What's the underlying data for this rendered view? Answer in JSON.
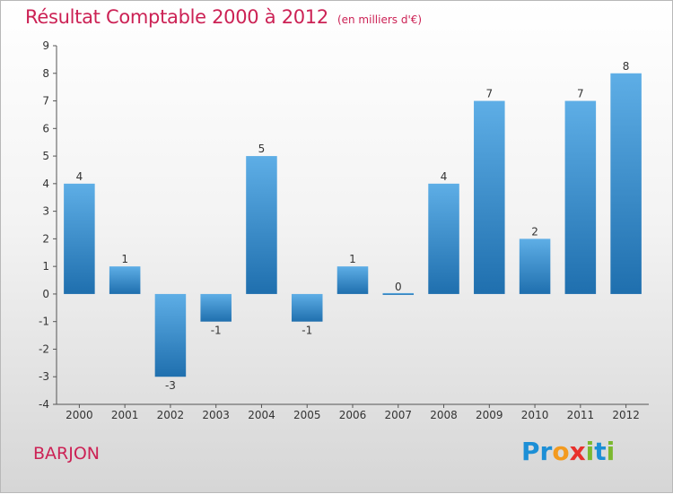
{
  "header": {
    "title": "Résultat Comptable 2000 à 2012",
    "subtitle": "(en milliers d'€)"
  },
  "footer": {
    "commune": "BARJON",
    "logo_letters": [
      {
        "char": "P",
        "color": "#1c8fd6"
      },
      {
        "char": "r",
        "color": "#1c8fd6"
      },
      {
        "char": "o",
        "color": "#f39a1e"
      },
      {
        "char": "x",
        "color": "#e8302c"
      },
      {
        "char": "i",
        "color": "#7cb82f"
      },
      {
        "char": "t",
        "color": "#1c8fd6"
      },
      {
        "char": "i",
        "color": "#7cb82f"
      }
    ]
  },
  "colors": {
    "bar_light": "#5eaee6",
    "bar_dark": "#1f6fae",
    "title": "#cc2255"
  },
  "chart_data": {
    "type": "bar",
    "categories": [
      "2000",
      "2001",
      "2002",
      "2003",
      "2004",
      "2005",
      "2006",
      "2007",
      "2008",
      "2009",
      "2010",
      "2011",
      "2012"
    ],
    "values": [
      4,
      1,
      -3,
      -1,
      5,
      -1,
      1,
      0,
      4,
      7,
      2,
      7,
      8
    ],
    "ylim": [
      -4,
      9
    ],
    "yticks": [
      -4,
      -3,
      -2,
      -1,
      0,
      1,
      2,
      3,
      4,
      5,
      6,
      7,
      8,
      9
    ],
    "grid": false,
    "legend": "none"
  }
}
